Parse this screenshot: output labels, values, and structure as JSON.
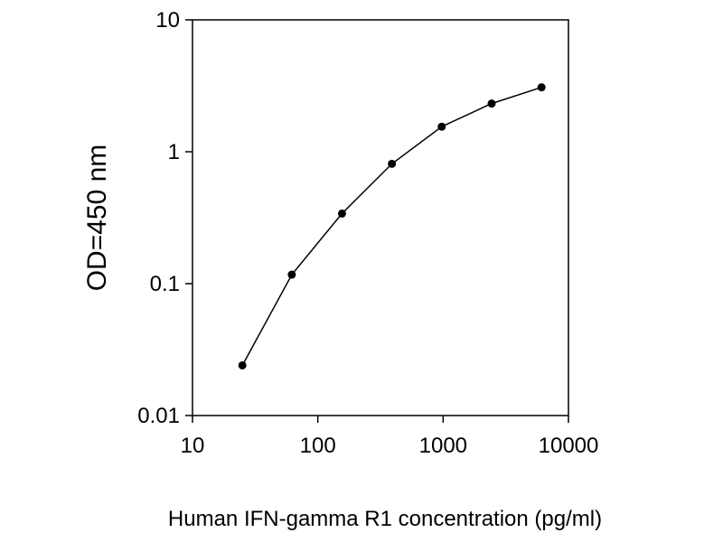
{
  "chart_data": {
    "type": "line",
    "title": "",
    "xlabel": "Human IFN-gamma R1 concentration (pg/ml)",
    "ylabel": "OD=450 nm",
    "x_scale": "log",
    "y_scale": "log",
    "xlim": [
      10,
      10000
    ],
    "ylim": [
      0.01,
      10
    ],
    "x_ticks": [
      10,
      100,
      1000,
      10000
    ],
    "x_tick_labels": [
      "10",
      "100",
      "1000",
      "10000"
    ],
    "y_ticks": [
      0.01,
      0.1,
      1,
      10
    ],
    "y_tick_labels": [
      "0.01",
      "0.1",
      "1",
      "10"
    ],
    "grid": false,
    "legend": "none",
    "series": [
      {
        "color": "#000000",
        "marker": "circle",
        "x": [
          25,
          62,
          156,
          390,
          975,
          2438,
          6094
        ],
        "y": [
          0.024,
          0.117,
          0.34,
          0.81,
          1.55,
          2.32,
          3.08
        ]
      }
    ]
  }
}
